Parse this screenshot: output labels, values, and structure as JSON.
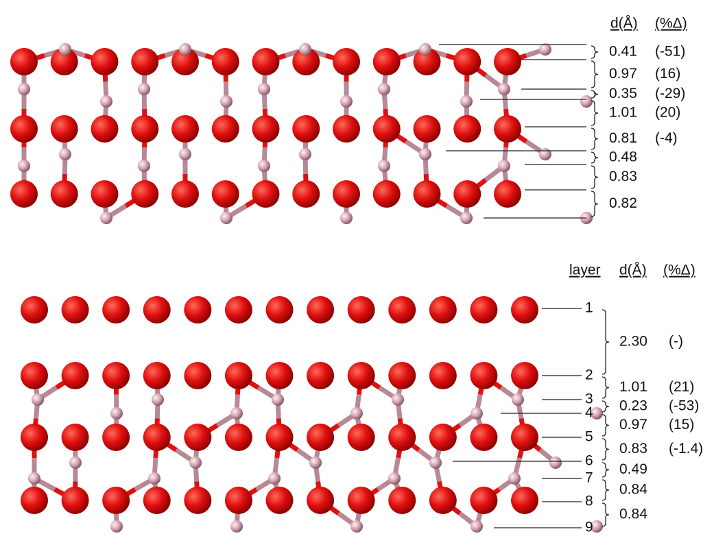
{
  "top": {
    "header": {
      "d": "d(Å)",
      "pct": "(%Δ)"
    },
    "rows": [
      {
        "d": "0.41",
        "pct": "(-51)"
      },
      {
        "d": "0.97",
        "pct": "(16)"
      },
      {
        "d": "0.35",
        "pct": "(-29)"
      },
      {
        "d": "1.01",
        "pct": "(20)"
      },
      {
        "d": "0.81",
        "pct": "(-4)"
      },
      {
        "d": "0.48"
      },
      {
        "d": "0.83"
      },
      {
        "d": "0.82"
      }
    ]
  },
  "bottom": {
    "header": {
      "layer": "layer",
      "d": "d(Å)",
      "pct": "(%Δ)"
    },
    "layers": [
      "1",
      "2",
      "3",
      "4",
      "5",
      "6",
      "7",
      "8",
      "9"
    ],
    "rows": [
      {
        "d": "2.30",
        "pct": "(-)"
      },
      {
        "d": "1.01",
        "pct": "(21)"
      },
      {
        "d": "0.23",
        "pct": "(-53)"
      },
      {
        "d": "0.97",
        "pct": "(15)"
      },
      {
        "d": "0.83",
        "pct": "(-1.4)"
      },
      {
        "d": "0.49"
      },
      {
        "d": "0.84"
      },
      {
        "d": "0.84"
      }
    ]
  }
}
